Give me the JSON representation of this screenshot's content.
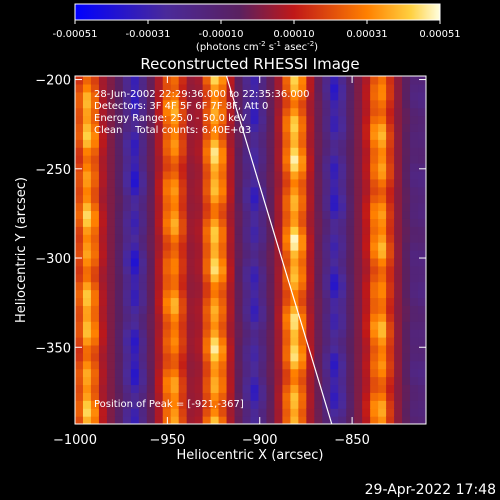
{
  "colorbar": {
    "tick_labels": [
      "-0.00051",
      "-0.00031",
      "-0.00010",
      "0.00010",
      "0.00031",
      "0.00051"
    ],
    "units_main": "(photons cm",
    "units_sup1": "-2",
    "units_mid1": " s",
    "units_sup2": "-1",
    "units_mid2": " asec",
    "units_sup3": "-2",
    "units_end": ")",
    "range": [
      -0.00051,
      0.00051
    ]
  },
  "chart_data": {
    "type": "heatmap",
    "title": "Reconstructed RHESSI Image",
    "xlabel": "Heliocentric X (arcsec)",
    "ylabel": "Heliocentric Y (arcsec)",
    "xlim": [
      -1000,
      -810
    ],
    "ylim": [
      -393,
      -198
    ],
    "x_ticks": [
      -1000,
      -950,
      -900,
      -850
    ],
    "x_tick_labels": [
      "−1000",
      "−950",
      "−900",
      "−850"
    ],
    "y_ticks": [
      -200,
      -250,
      -300,
      -350
    ],
    "y_tick_labels": [
      "−200",
      "−250",
      "−300",
      "−350"
    ],
    "stripe_centers_x": [
      -993,
      -968,
      -947,
      -924,
      -903,
      -881,
      -859,
      -835,
      -814
    ],
    "stripe_values": [
      0.00045,
      -0.0004,
      0.0004,
      0.00048,
      -0.00035,
      0.0005,
      -0.00038,
      0.00042,
      -0.0002
    ],
    "limb_line": [
      [
        -918,
        -198
      ],
      [
        -861,
        -393
      ]
    ],
    "annotations": [
      "28-Jun-2002 22:29:36.000 to 22:35:36.000",
      "Detectors: 3F 4F 5F 6F 7F 8F, Att 0",
      "Energy Range: 25.0 - 50.0 keV",
      "Clean    Total counts: 6.40E+03"
    ],
    "peak_label": "Position of Peak = [-921,-367]",
    "peak": [
      -921,
      -367
    ]
  },
  "timestamp": "29-Apr-2022 17:48",
  "colors": {
    "background": "#000000",
    "text": "#ffffff"
  }
}
